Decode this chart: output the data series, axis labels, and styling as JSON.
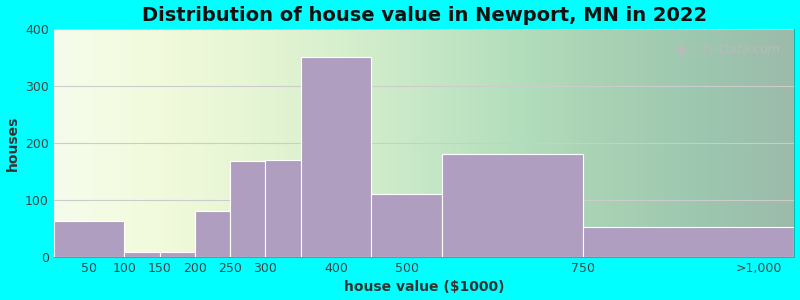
{
  "title": "Distribution of house value in Newport, MN in 2022",
  "xlabel": "house value ($1000)",
  "ylabel": "houses",
  "tick_positions": [
    50,
    100,
    150,
    200,
    250,
    300,
    400,
    500,
    750,
    1000
  ],
  "tick_labels": [
    "50",
    "100",
    "150",
    "200",
    "250",
    "300",
    "400",
    "500",
    "750",
    ">1,000"
  ],
  "bin_edges": [
    0,
    100,
    150,
    200,
    250,
    300,
    350,
    450,
    550,
    750,
    1050
  ],
  "bar_values": [
    63,
    8,
    8,
    80,
    168,
    170,
    350,
    110,
    180,
    52
  ],
  "bar_color": "#b09ec0",
  "bar_edge_color": "#ffffff",
  "background_color": "#00ffff",
  "ylim": [
    0,
    400
  ],
  "yticks": [
    0,
    100,
    200,
    300,
    400
  ],
  "title_fontsize": 14,
  "axis_label_fontsize": 10,
  "tick_fontsize": 9,
  "watermark_text": "City-Data.com",
  "watermark_color": "#bbbbbb",
  "grid_color": "#cccccc"
}
